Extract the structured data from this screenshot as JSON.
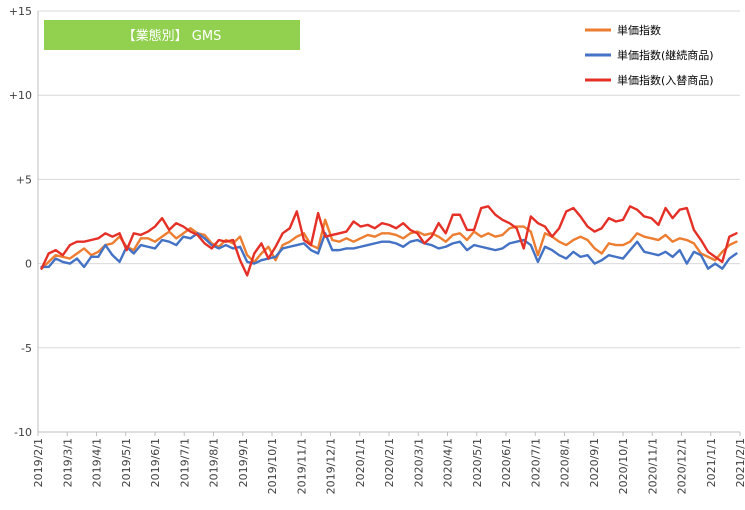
{
  "chart_data": {
    "type": "line",
    "title": "【業態別】 GMS",
    "title_badge_color": "#92d050",
    "ylim": [
      -10,
      15
    ],
    "yticks": [
      -10,
      -5,
      0,
      5,
      10,
      15
    ],
    "ytick_labels": [
      "-10",
      "-5",
      "0",
      "+5",
      "+10",
      "+15"
    ],
    "xlim": [
      "2019/2/1",
      "2021/2/1"
    ],
    "x_tick_labels": [
      "2019/2/1",
      "2019/3/1",
      "2019/4/1",
      "2019/5/1",
      "2019/6/1",
      "2019/7/1",
      "2019/8/1",
      "2019/9/1",
      "2019/10/1",
      "2019/11/1",
      "2019/12/1",
      "2020/1/1",
      "2020/2/1",
      "2020/3/1",
      "2020/4/1",
      "2020/5/1",
      "2020/6/1",
      "2020/7/1",
      "2020/8/1",
      "2020/9/1",
      "2020/10/1",
      "2020/11/1",
      "2020/12/1",
      "2021/1/1",
      "2021/2/1"
    ],
    "grid": "horizontal",
    "legend_position": "top-right",
    "series": [
      {
        "name": "単価指数",
        "color": "#ed7d31",
        "values": [
          -0.3,
          0.1,
          0.5,
          0.4,
          0.3,
          0.6,
          0.9,
          0.5,
          0.7,
          1.1,
          1.2,
          1.6,
          1.0,
          0.8,
          1.5,
          1.5,
          1.3,
          1.6,
          1.9,
          1.5,
          1.8,
          2.1,
          1.8,
          1.7,
          1.2,
          1.0,
          1.4,
          1.2,
          1.6,
          0.5,
          0.1,
          0.6,
          1.0,
          0.2,
          1.1,
          1.3,
          1.6,
          1.8,
          1.1,
          0.9,
          2.6,
          1.4,
          1.3,
          1.5,
          1.3,
          1.5,
          1.7,
          1.6,
          1.8,
          1.8,
          1.7,
          1.5,
          1.8,
          1.9,
          1.7,
          1.8,
          1.6,
          1.3,
          1.7,
          1.8,
          1.4,
          1.9,
          1.6,
          1.8,
          1.6,
          1.7,
          2.1,
          2.2,
          2.2,
          1.9,
          0.5,
          1.8,
          1.6,
          1.3,
          1.1,
          1.4,
          1.6,
          1.4,
          0.9,
          0.6,
          1.2,
          1.1,
          1.1,
          1.3,
          1.8,
          1.6,
          1.5,
          1.4,
          1.7,
          1.3,
          1.5,
          1.4,
          1.2,
          0.6,
          0.4,
          0.2,
          0.7,
          1.1,
          1.3
        ]
      },
      {
        "name": "単価指数(継続商品)",
        "color": "#4472c4",
        "values": [
          -0.2,
          -0.2,
          0.3,
          0.1,
          0.0,
          0.3,
          -0.2,
          0.4,
          0.4,
          1.1,
          0.5,
          0.1,
          1.0,
          0.6,
          1.1,
          1.0,
          0.9,
          1.4,
          1.3,
          1.1,
          1.6,
          1.5,
          1.8,
          1.5,
          1.1,
          0.9,
          1.1,
          0.9,
          1.0,
          0.1,
          0.0,
          0.2,
          0.3,
          0.4,
          0.9,
          1.0,
          1.1,
          1.2,
          0.8,
          0.6,
          1.8,
          0.8,
          0.8,
          0.9,
          0.9,
          1.0,
          1.1,
          1.2,
          1.3,
          1.3,
          1.2,
          1.0,
          1.3,
          1.4,
          1.2,
          1.1,
          0.9,
          1.0,
          1.2,
          1.3,
          0.8,
          1.1,
          1.0,
          0.9,
          0.8,
          0.9,
          1.2,
          1.3,
          1.4,
          1.1,
          0.1,
          1.0,
          0.8,
          0.5,
          0.3,
          0.7,
          0.4,
          0.5,
          0.0,
          0.2,
          0.5,
          0.4,
          0.3,
          0.8,
          1.3,
          0.7,
          0.6,
          0.5,
          0.7,
          0.4,
          0.8,
          0.0,
          0.7,
          0.5,
          -0.3,
          0.0,
          -0.3,
          0.3,
          0.6
        ]
      },
      {
        "name": "単価指数(入替商品)",
        "color": "#e53027",
        "values": [
          -0.3,
          0.6,
          0.8,
          0.5,
          1.1,
          1.3,
          1.3,
          1.4,
          1.5,
          1.8,
          1.6,
          1.8,
          0.8,
          1.8,
          1.7,
          1.9,
          2.2,
          2.7,
          2.0,
          2.4,
          2.2,
          1.9,
          1.7,
          1.2,
          0.9,
          1.4,
          1.3,
          1.4,
          0.2,
          -0.7,
          0.6,
          1.2,
          0.3,
          1.0,
          1.8,
          2.1,
          3.1,
          1.4,
          1.1,
          3.0,
          1.6,
          1.7,
          1.8,
          1.9,
          2.5,
          2.2,
          2.3,
          2.1,
          2.4,
          2.3,
          2.1,
          2.4,
          2.0,
          1.8,
          1.2,
          1.6,
          2.4,
          1.8,
          2.9,
          2.9,
          2.0,
          2.0,
          3.3,
          3.4,
          2.9,
          2.6,
          2.4,
          2.1,
          0.9,
          2.8,
          2.4,
          2.2,
          1.6,
          2.1,
          3.1,
          3.3,
          2.8,
          2.2,
          1.9,
          2.1,
          2.7,
          2.5,
          2.6,
          3.4,
          3.2,
          2.8,
          2.7,
          2.3,
          3.3,
          2.7,
          3.2,
          3.3,
          2.0,
          1.4,
          0.7,
          0.4,
          0.1,
          1.6,
          1.8
        ]
      }
    ]
  }
}
